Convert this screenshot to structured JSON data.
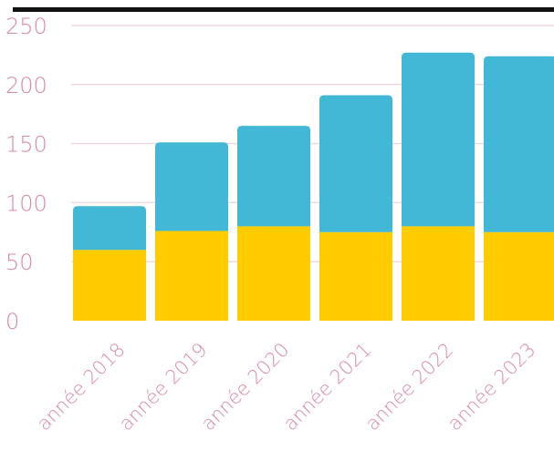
{
  "chart_data": {
    "type": "bar",
    "stacked": true,
    "categories": [
      "année 2018",
      "année 2019",
      "année 2020",
      "année 2021",
      "année 2022",
      "année 2023"
    ],
    "series": [
      {
        "values": [
          60,
          76,
          80,
          75,
          80,
          75
        ],
        "color": "#ffcc00"
      },
      {
        "values": [
          37,
          75,
          85,
          116,
          147,
          149
        ],
        "color": "#42b8d6"
      }
    ],
    "ylim": [
      0,
      250
    ],
    "yticks": [
      0,
      50,
      100,
      150,
      200,
      250
    ],
    "grid": true,
    "legend": "none"
  }
}
